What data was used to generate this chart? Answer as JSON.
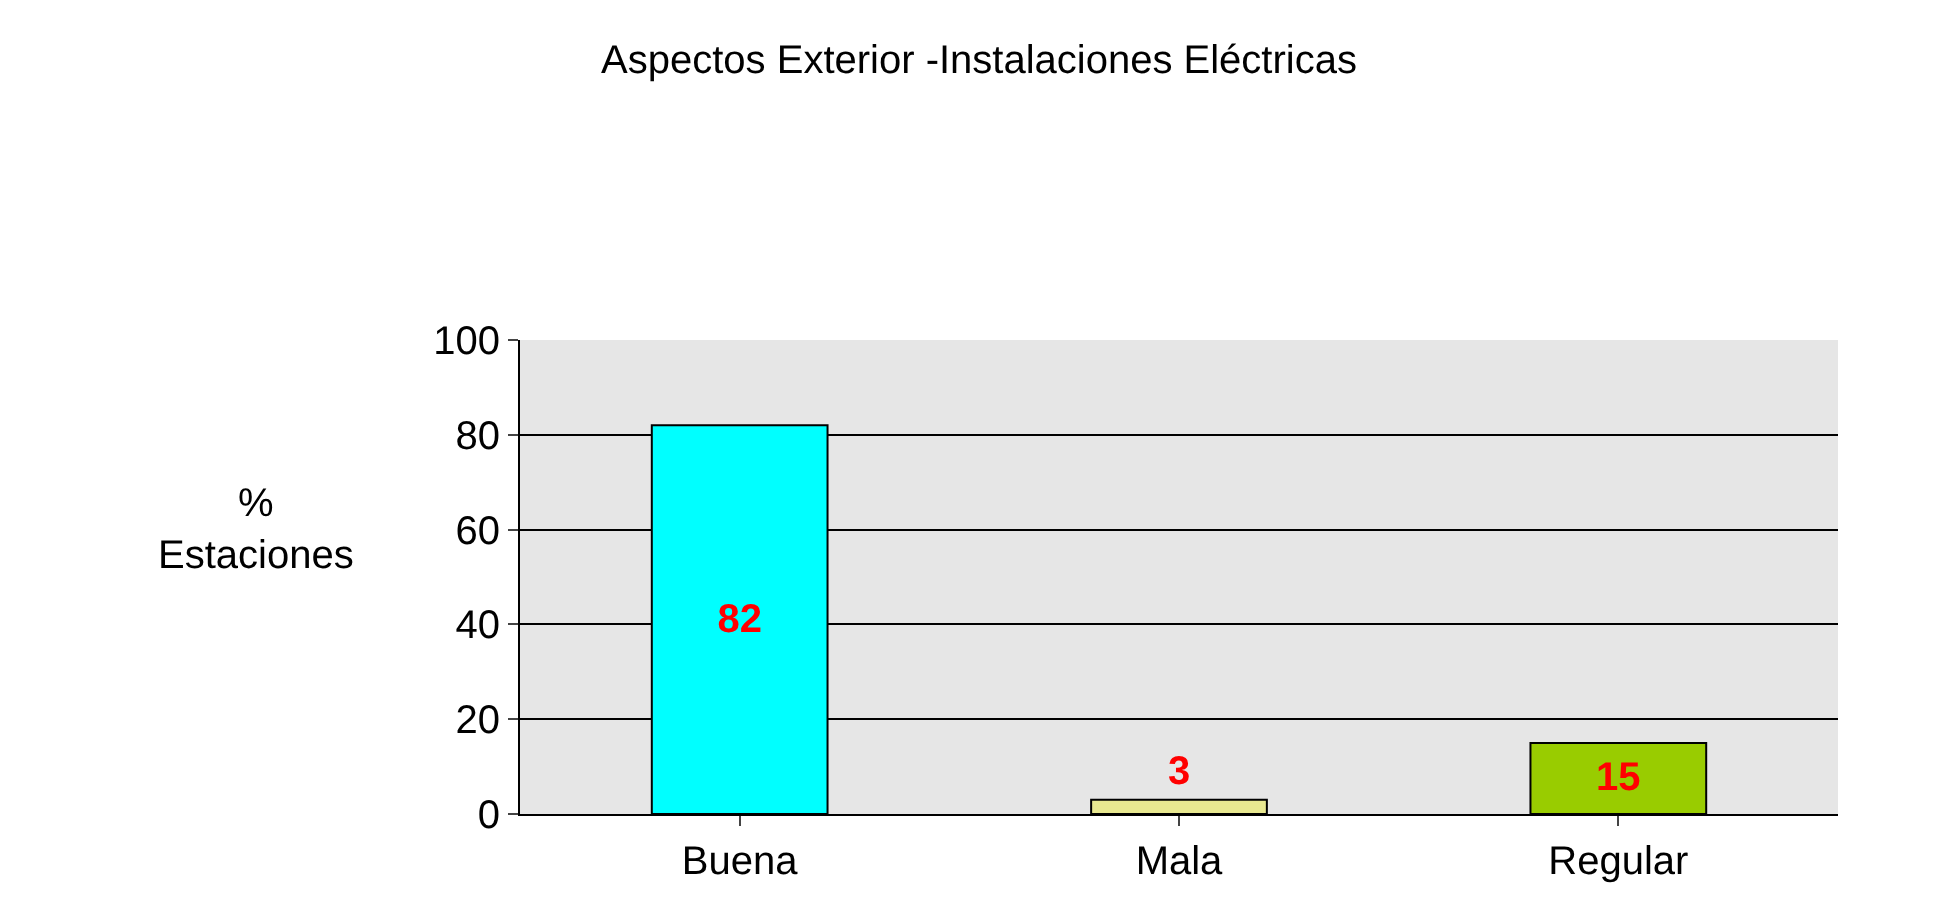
{
  "chart_data": {
    "type": "bar",
    "title": "Aspectos Exterior -Instalaciones Eléctricas",
    "ylabel": "%\nEstaciones",
    "categories": [
      "Buena",
      "Mala",
      "Regular"
    ],
    "values": [
      82,
      3,
      15
    ],
    "colors": [
      "#00ffff",
      "#e8e890",
      "#99cc00"
    ],
    "ylim": [
      0,
      100
    ],
    "yticks": [
      0,
      20,
      40,
      60,
      80,
      100
    ],
    "grid": "y",
    "data_labels": true,
    "legend": false
  }
}
